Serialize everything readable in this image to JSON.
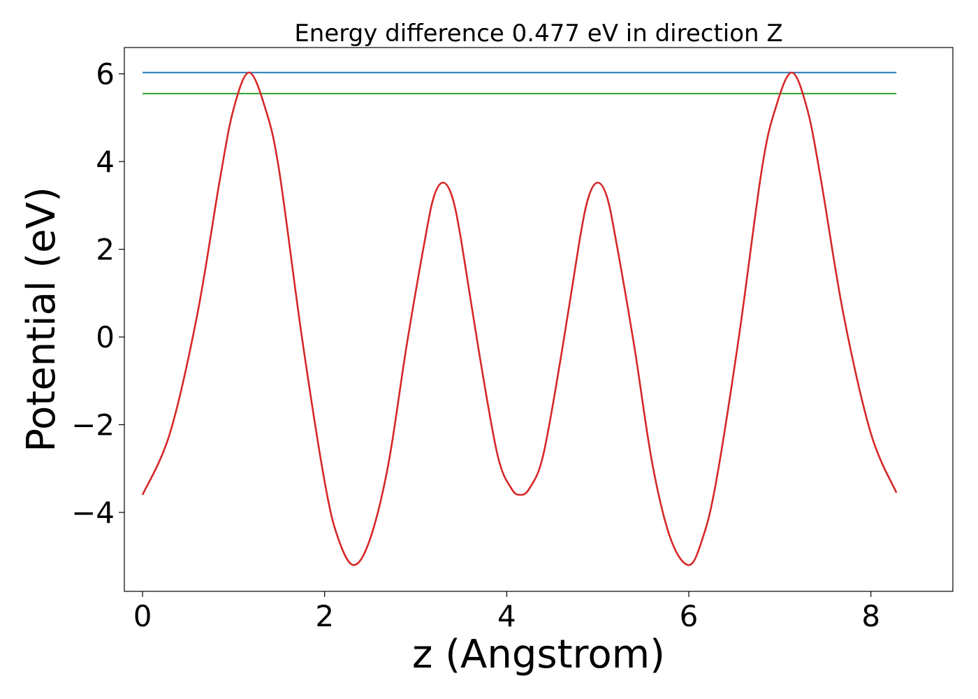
{
  "chart_data": {
    "type": "line",
    "title": "Energy difference 0.477 eV in direction Z",
    "xlabel": "z (Angstrom)",
    "ylabel": "Potential (eV)",
    "xlim": [
      -0.2,
      8.9
    ],
    "ylim": [
      -5.8,
      6.6
    ],
    "xticks": [
      0,
      2,
      4,
      6,
      8
    ],
    "xtick_labels": [
      "0",
      "2",
      "4",
      "6",
      "8"
    ],
    "yticks": [
      -4,
      -2,
      0,
      2,
      4,
      6
    ],
    "ytick_labels": [
      "−4",
      "−2",
      "0",
      "2",
      "4",
      "6"
    ],
    "grid": false,
    "legend": "none",
    "hlines": [
      {
        "y": 6.03,
        "xmin": 0,
        "xmax": 8.28,
        "color": "#1f77b4"
      },
      {
        "y": 5.55,
        "xmin": 0,
        "xmax": 8.28,
        "color": "#2ca02c"
      }
    ],
    "series": [
      {
        "color": "#d62728",
        "points": [
          [
            0.0,
            -3.6
          ],
          [
            0.3,
            -2.2
          ],
          [
            0.6,
            0.5
          ],
          [
            0.85,
            3.6
          ],
          [
            1.0,
            5.2
          ],
          [
            1.17,
            6.03
          ],
          [
            1.35,
            5.2
          ],
          [
            1.5,
            3.8
          ],
          [
            1.75,
            0.0
          ],
          [
            2.0,
            -3.3
          ],
          [
            2.15,
            -4.6
          ],
          [
            2.32,
            -5.2
          ],
          [
            2.5,
            -4.6
          ],
          [
            2.7,
            -2.9
          ],
          [
            2.9,
            -0.2
          ],
          [
            3.1,
            2.2
          ],
          [
            3.2,
            3.2
          ],
          [
            3.3,
            3.52
          ],
          [
            3.4,
            3.2
          ],
          [
            3.5,
            2.2
          ],
          [
            3.7,
            -0.4
          ],
          [
            3.9,
            -2.7
          ],
          [
            4.05,
            -3.45
          ],
          [
            4.15,
            -3.6
          ],
          [
            4.25,
            -3.45
          ],
          [
            4.4,
            -2.7
          ],
          [
            4.6,
            -0.4
          ],
          [
            4.8,
            2.2
          ],
          [
            4.9,
            3.2
          ],
          [
            5.0,
            3.52
          ],
          [
            5.1,
            3.2
          ],
          [
            5.2,
            2.2
          ],
          [
            5.4,
            -0.2
          ],
          [
            5.6,
            -2.9
          ],
          [
            5.8,
            -4.6
          ],
          [
            6.0,
            -5.2
          ],
          [
            6.15,
            -4.6
          ],
          [
            6.3,
            -3.3
          ],
          [
            6.55,
            0.0
          ],
          [
            6.8,
            3.8
          ],
          [
            6.95,
            5.2
          ],
          [
            7.13,
            6.03
          ],
          [
            7.3,
            5.2
          ],
          [
            7.45,
            3.6
          ],
          [
            7.7,
            0.5
          ],
          [
            8.0,
            -2.2
          ],
          [
            8.28,
            -3.55
          ]
        ]
      }
    ]
  }
}
